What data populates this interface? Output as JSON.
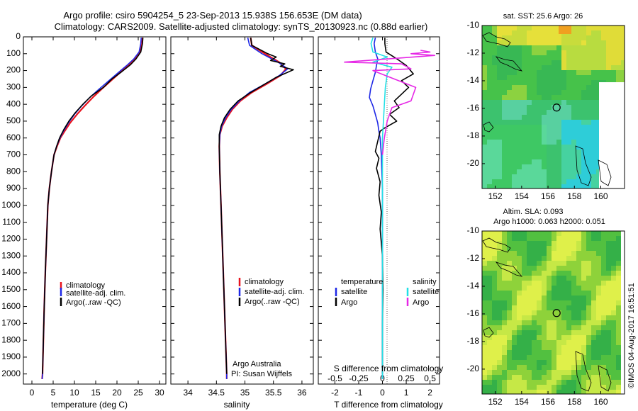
{
  "title_line1": "Argo profile: csiro 5904254_5 23-Sep-2013 15.938S 156.653E (DM data)",
  "title_line2": "Climatology: CARS2009. Satellite-adjusted climatology: synTS_20130923.nc (0.88d earlier)",
  "watermark": "©IMOS 04-Aug-2017 16:51:51",
  "colors": {
    "clim": "#e8141e",
    "sat": "#1e28e6",
    "argo": "#000000",
    "sat_sal": "#22e0e6",
    "argo_sal": "#e628e6",
    "frame": "#000000"
  },
  "chart_data": [
    {
      "type": "line",
      "id": "temperature",
      "xlabel": "temperature (deg C)",
      "xlim": [
        -2,
        31.5
      ],
      "ylim": [
        2060,
        0
      ],
      "xticks": [
        0,
        5,
        10,
        15,
        20,
        25,
        30
      ],
      "yticks": [
        0,
        100,
        200,
        300,
        400,
        500,
        600,
        700,
        800,
        900,
        1000,
        1100,
        1200,
        1300,
        1400,
        1500,
        1600,
        1700,
        1800,
        1900,
        2000
      ],
      "legend": [
        "climatology",
        "satellite-adj. clim.",
        "Argo(..raw -QC)"
      ],
      "series": [
        {
          "name": "climatology",
          "points": [
            [
              26,
              5
            ],
            [
              25.9,
              40
            ],
            [
              25.4,
              90
            ],
            [
              24.2,
              130
            ],
            [
              22.6,
              170
            ],
            [
              20.8,
              210
            ],
            [
              18.6,
              260
            ],
            [
              16.4,
              310
            ],
            [
              14.3,
              360
            ],
            [
              12.4,
              410
            ],
            [
              10.6,
              460
            ],
            [
              9.0,
              510
            ],
            [
              7.7,
              560
            ],
            [
              6.7,
              600
            ],
            [
              5.9,
              650
            ],
            [
              5.2,
              700
            ],
            [
              4.6,
              800
            ],
            [
              4.1,
              900
            ],
            [
              3.75,
              1000
            ],
            [
              3.45,
              1200
            ],
            [
              3.15,
              1400
            ],
            [
              2.9,
              1600
            ],
            [
              2.7,
              1800
            ],
            [
              2.5,
              2000
            ],
            [
              2.4,
              2030
            ]
          ]
        },
        {
          "name": "satellite-adj. clim.",
          "points": [
            [
              25.7,
              5
            ],
            [
              25.6,
              40
            ],
            [
              25.2,
              90
            ],
            [
              24.0,
              130
            ],
            [
              22.3,
              170
            ],
            [
              20.4,
              210
            ],
            [
              18.1,
              260
            ],
            [
              15.8,
              310
            ],
            [
              13.6,
              360
            ],
            [
              11.7,
              410
            ],
            [
              10.0,
              460
            ],
            [
              8.6,
              510
            ],
            [
              7.4,
              560
            ],
            [
              6.6,
              600
            ],
            [
              5.8,
              650
            ],
            [
              5.2,
              700
            ],
            [
              4.6,
              800
            ],
            [
              4.1,
              900
            ],
            [
              3.75,
              1000
            ],
            [
              3.45,
              1200
            ],
            [
              3.15,
              1400
            ],
            [
              2.9,
              1600
            ],
            [
              2.7,
              1800
            ],
            [
              2.5,
              2000
            ],
            [
              2.4,
              2030
            ]
          ]
        },
        {
          "name": "Argo(..raw -QC)",
          "points": [
            [
              26.1,
              5
            ],
            [
              26.0,
              40
            ],
            [
              25.6,
              90
            ],
            [
              24.5,
              130
            ],
            [
              23.2,
              165
            ],
            [
              21.2,
              205
            ],
            [
              18.8,
              250
            ],
            [
              16.8,
              300
            ],
            [
              14.0,
              350
            ],
            [
              12.0,
              400
            ],
            [
              10.2,
              450
            ],
            [
              8.7,
              500
            ],
            [
              7.5,
              550
            ],
            [
              6.5,
              600
            ],
            [
              5.8,
              650
            ],
            [
              5.2,
              700
            ],
            [
              4.6,
              800
            ],
            [
              4.1,
              900
            ],
            [
              3.75,
              1000
            ],
            [
              3.45,
              1200
            ],
            [
              3.15,
              1400
            ],
            [
              2.9,
              1600
            ],
            [
              2.7,
              1800
            ],
            [
              2.5,
              2000
            ]
          ]
        }
      ]
    },
    {
      "type": "line",
      "id": "salinity",
      "xlabel": "salinity",
      "xlim": [
        33.7,
        36.2
      ],
      "ylim": [
        2060,
        0
      ],
      "xticks": [
        34,
        34.5,
        35,
        35.5,
        36
      ],
      "legend": [
        "climatology",
        "satellite-adj. clim.",
        "Argo(..raw -QC)"
      ],
      "annotations": [
        "Argo Australia",
        "PI: Susan Wijffels"
      ],
      "series": [
        {
          "name": "climatology",
          "points": [
            [
              35.1,
              5
            ],
            [
              35.12,
              50
            ],
            [
              35.35,
              100
            ],
            [
              35.6,
              150
            ],
            [
              35.72,
              190
            ],
            [
              35.62,
              230
            ],
            [
              35.38,
              280
            ],
            [
              35.12,
              330
            ],
            [
              34.92,
              380
            ],
            [
              34.78,
              430
            ],
            [
              34.68,
              480
            ],
            [
              34.6,
              530
            ],
            [
              34.56,
              580
            ],
            [
              34.55,
              650
            ],
            [
              34.56,
              800
            ],
            [
              34.58,
              1000
            ],
            [
              34.6,
              1200
            ],
            [
              34.62,
              1400
            ],
            [
              34.64,
              1600
            ],
            [
              34.66,
              1800
            ],
            [
              34.68,
              2000
            ],
            [
              34.68,
              2030
            ]
          ]
        },
        {
          "name": "satellite-adj. clim.",
          "points": [
            [
              35.05,
              5
            ],
            [
              35.08,
              50
            ],
            [
              35.3,
              100
            ],
            [
              35.58,
              150
            ],
            [
              35.75,
              190
            ],
            [
              35.6,
              230
            ],
            [
              35.35,
              280
            ],
            [
              35.08,
              330
            ],
            [
              34.9,
              380
            ],
            [
              34.76,
              430
            ],
            [
              34.66,
              480
            ],
            [
              34.59,
              530
            ],
            [
              34.56,
              580
            ],
            [
              34.55,
              650
            ],
            [
              34.56,
              800
            ],
            [
              34.58,
              1000
            ],
            [
              34.6,
              1200
            ],
            [
              34.62,
              1400
            ],
            [
              34.64,
              1600
            ],
            [
              34.66,
              1800
            ],
            [
              34.68,
              2000
            ],
            [
              34.68,
              2030
            ]
          ]
        },
        {
          "name": "Argo(..raw -QC)",
          "points": [
            [
              35.1,
              5
            ],
            [
              35.12,
              50
            ],
            [
              35.4,
              100
            ],
            [
              35.55,
              120
            ],
            [
              35.45,
              140
            ],
            [
              35.7,
              160
            ],
            [
              35.62,
              175
            ],
            [
              35.85,
              195
            ],
            [
              35.75,
              210
            ],
            [
              35.55,
              240
            ],
            [
              35.35,
              280
            ],
            [
              35.1,
              330
            ],
            [
              34.88,
              380
            ],
            [
              34.74,
              430
            ],
            [
              34.64,
              480
            ],
            [
              34.58,
              530
            ],
            [
              34.55,
              580
            ],
            [
              34.55,
              650
            ],
            [
              34.56,
              800
            ],
            [
              34.58,
              1000
            ],
            [
              34.6,
              1200
            ],
            [
              34.62,
              1400
            ],
            [
              34.64,
              1600
            ],
            [
              34.66,
              1800
            ],
            [
              34.68,
              2000
            ]
          ]
        }
      ]
    },
    {
      "type": "line",
      "id": "differences",
      "xlabel": "T difference from climatology",
      "xlabel2": "S difference from climatology",
      "xlim": [
        -2.7,
        2.4
      ],
      "ylim": [
        2060,
        0
      ],
      "xticks": [
        -2,
        -1,
        0,
        1,
        2
      ],
      "xticks2": [
        -0.5,
        -0.25,
        0,
        0.25,
        0.5
      ],
      "legend_temperature": {
        "title": "temperature",
        "entries": [
          "satellite",
          "Argo"
        ]
      },
      "legend_salinity": {
        "title": "salinity",
        "entries": [
          "satellite",
          "Argo"
        ]
      },
      "series": [
        {
          "name": "temperature satellite",
          "points": [
            [
              -0.3,
              5
            ],
            [
              -0.35,
              40
            ],
            [
              -0.3,
              90
            ],
            [
              -0.2,
              130
            ],
            [
              -0.25,
              170
            ],
            [
              -0.3,
              210
            ],
            [
              -0.4,
              260
            ],
            [
              -0.5,
              310
            ],
            [
              -0.55,
              360
            ],
            [
              -0.4,
              410
            ],
            [
              -0.3,
              460
            ],
            [
              -0.2,
              510
            ],
            [
              -0.15,
              560
            ],
            [
              -0.1,
              600
            ],
            [
              -0.05,
              700
            ],
            [
              0,
              900
            ],
            [
              0,
              2030
            ]
          ]
        },
        {
          "name": "temperature Argo",
          "points": [
            [
              0.1,
              5
            ],
            [
              0.1,
              40
            ],
            [
              0.15,
              90
            ],
            [
              0.6,
              130
            ],
            [
              1.0,
              170
            ],
            [
              1.3,
              220
            ],
            [
              0.8,
              260
            ],
            [
              1.1,
              300
            ],
            [
              0.8,
              340
            ],
            [
              0.5,
              380
            ],
            [
              0.7,
              420
            ],
            [
              0.3,
              460
            ],
            [
              0.6,
              500
            ],
            [
              0.1,
              540
            ],
            [
              -0.1,
              560
            ],
            [
              -0.2,
              620
            ],
            [
              -0.3,
              680
            ],
            [
              -0.15,
              720
            ],
            [
              -0.25,
              780
            ],
            [
              -0.1,
              860
            ],
            [
              -0.15,
              940
            ],
            [
              -0.05,
              1040
            ],
            [
              -0.1,
              1140
            ],
            [
              0,
              1300
            ],
            [
              0.02,
              1500
            ],
            [
              0,
              1700
            ],
            [
              0,
              2000
            ]
          ]
        },
        {
          "name": "salinity satellite",
          "points": [
            [
              -0.1,
              5
            ],
            [
              -0.12,
              40
            ],
            [
              -0.1,
              90
            ],
            [
              0.05,
              120
            ],
            [
              -0.1,
              150
            ],
            [
              0.1,
              180
            ],
            [
              0.05,
              220
            ],
            [
              0.03,
              300
            ],
            [
              0.02,
              400
            ],
            [
              0.01,
              500
            ],
            [
              0,
              600
            ],
            [
              0,
              800
            ],
            [
              0,
              1200
            ],
            [
              0,
              2030
            ]
          ]
        },
        {
          "name": "salinity Argo",
          "points": [
            [
              0.4,
              80
            ],
            [
              0.5,
              90
            ],
            [
              0.3,
              100
            ],
            [
              0.55,
              110
            ],
            [
              -0.4,
              150
            ],
            [
              0.2,
              160
            ],
            [
              0.3,
              190
            ],
            [
              -0.1,
              200
            ],
            [
              0.35,
              300
            ],
            [
              0.3,
              380
            ],
            [
              0.1,
              420
            ],
            [
              0.05,
              500
            ],
            [
              0.02,
              600
            ],
            [
              0,
              700
            ]
          ]
        }
      ]
    },
    {
      "type": "heatmap",
      "id": "sst_map",
      "title": "sat. SST: 25.6 Argo: 26",
      "xlim": [
        151,
        161.8
      ],
      "ylim": [
        -21.8,
        -10
      ],
      "xticks": [
        152,
        154,
        156,
        158,
        160
      ],
      "yticks": [
        -10,
        -12,
        -14,
        -16,
        -18,
        -20
      ],
      "marker": [
        156.653,
        -15.938
      ]
    },
    {
      "type": "heatmap",
      "id": "sla_map",
      "title": "Altim. SLA: 0.093",
      "subtitle": "Argo h1000: 0.063 h2000: 0.051",
      "xlim": [
        151,
        161.8
      ],
      "ylim": [
        -21.8,
        -10
      ],
      "xticks": [
        152,
        154,
        156,
        158,
        160
      ],
      "yticks": [
        -10,
        -12,
        -14,
        -16,
        -18,
        -20
      ],
      "marker": [
        156.653,
        -15.938
      ]
    }
  ]
}
